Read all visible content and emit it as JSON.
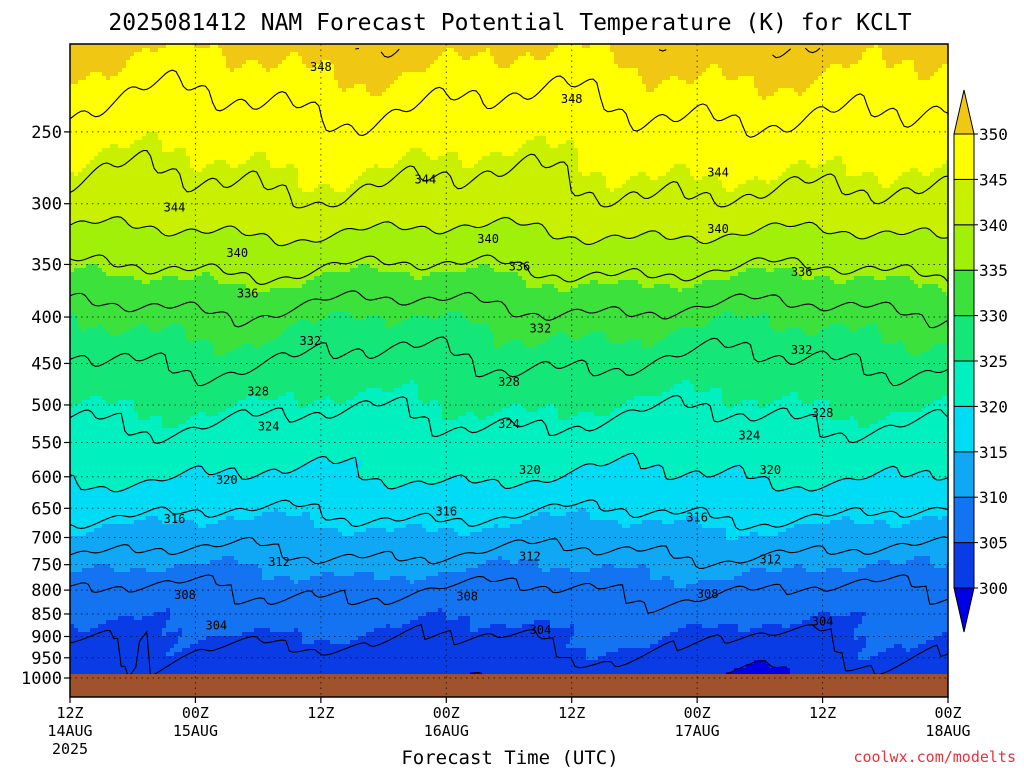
{
  "chart_data": {
    "type": "heatmap",
    "title": "2025081412 NAM Forecast Potential Temperature (K) for KCLT",
    "xlabel": "Forecast Time (UTC)",
    "ylabel": "",
    "credit": "coolwx.com/modelts",
    "x_ticks": [
      {
        "hour": 0,
        "label": "12Z",
        "date": "14AUG",
        "year": "2025"
      },
      {
        "hour": 12,
        "label": "00Z",
        "date": "15AUG",
        "year": ""
      },
      {
        "hour": 24,
        "label": "12Z",
        "date": "",
        "year": ""
      },
      {
        "hour": 36,
        "label": "00Z",
        "date": "16AUG",
        "year": ""
      },
      {
        "hour": 48,
        "label": "12Z",
        "date": "",
        "year": ""
      },
      {
        "hour": 60,
        "label": "00Z",
        "date": "17AUG",
        "year": ""
      },
      {
        "hour": 72,
        "label": "12Z",
        "date": "",
        "year": ""
      },
      {
        "hour": 84,
        "label": "00Z",
        "date": "18AUG",
        "year": ""
      }
    ],
    "xlim": [
      0,
      84
    ],
    "y_ticks": [
      250,
      300,
      350,
      400,
      450,
      500,
      550,
      600,
      650,
      700,
      750,
      800,
      850,
      900,
      950,
      1000
    ],
    "ylim": [
      1000,
      200
    ],
    "y_scale": "log",
    "colorbar": {
      "levels": [
        300,
        305,
        310,
        315,
        320,
        325,
        330,
        335,
        340,
        345,
        350
      ],
      "colors": [
        "#0000e6",
        "#0a3ce6",
        "#1473f0",
        "#10a8f5",
        "#00dcf5",
        "#00f0c0",
        "#14e678",
        "#3ce13c",
        "#a0f00a",
        "#c8f000",
        "#ffff00",
        "#f0c814"
      ]
    },
    "contour_interval": 4,
    "contour_labels": [
      {
        "hour": 24,
        "pressure": 212,
        "label": "348"
      },
      {
        "hour": 48,
        "pressure": 230,
        "label": "348"
      },
      {
        "hour": 10,
        "pressure": 303,
        "label": "344"
      },
      {
        "hour": 34,
        "pressure": 282,
        "label": "344"
      },
      {
        "hour": 62,
        "pressure": 277,
        "label": "344"
      },
      {
        "hour": 16,
        "pressure": 340,
        "label": "340"
      },
      {
        "hour": 40,
        "pressure": 328,
        "label": "340"
      },
      {
        "hour": 62,
        "pressure": 320,
        "label": "340"
      },
      {
        "hour": 43,
        "pressure": 352,
        "label": "336"
      },
      {
        "hour": 17,
        "pressure": 377,
        "label": "336"
      },
      {
        "hour": 70,
        "pressure": 357,
        "label": "336"
      },
      {
        "hour": 23,
        "pressure": 425,
        "label": "332"
      },
      {
        "hour": 45,
        "pressure": 412,
        "label": "332"
      },
      {
        "hour": 70,
        "pressure": 435,
        "label": "332"
      },
      {
        "hour": 18,
        "pressure": 483,
        "label": "328"
      },
      {
        "hour": 42,
        "pressure": 472,
        "label": "328"
      },
      {
        "hour": 72,
        "pressure": 510,
        "label": "328"
      },
      {
        "hour": 19,
        "pressure": 528,
        "label": "324"
      },
      {
        "hour": 42,
        "pressure": 525,
        "label": "324"
      },
      {
        "hour": 65,
        "pressure": 540,
        "label": "324"
      },
      {
        "hour": 15,
        "pressure": 605,
        "label": "320"
      },
      {
        "hour": 44,
        "pressure": 590,
        "label": "320"
      },
      {
        "hour": 67,
        "pressure": 590,
        "label": "320"
      },
      {
        "hour": 10,
        "pressure": 668,
        "label": "316"
      },
      {
        "hour": 36,
        "pressure": 655,
        "label": "316"
      },
      {
        "hour": 60,
        "pressure": 665,
        "label": "316"
      },
      {
        "hour": 20,
        "pressure": 745,
        "label": "312"
      },
      {
        "hour": 44,
        "pressure": 735,
        "label": "312"
      },
      {
        "hour": 67,
        "pressure": 740,
        "label": "312"
      },
      {
        "hour": 11,
        "pressure": 810,
        "label": "308"
      },
      {
        "hour": 38,
        "pressure": 813,
        "label": "308"
      },
      {
        "hour": 61,
        "pressure": 808,
        "label": "308"
      },
      {
        "hour": 14,
        "pressure": 875,
        "label": "304"
      },
      {
        "hour": 45,
        "pressure": 885,
        "label": "304"
      },
      {
        "hour": 72,
        "pressure": 866,
        "label": "304"
      }
    ],
    "ground_pressure": 990,
    "grid": true
  }
}
